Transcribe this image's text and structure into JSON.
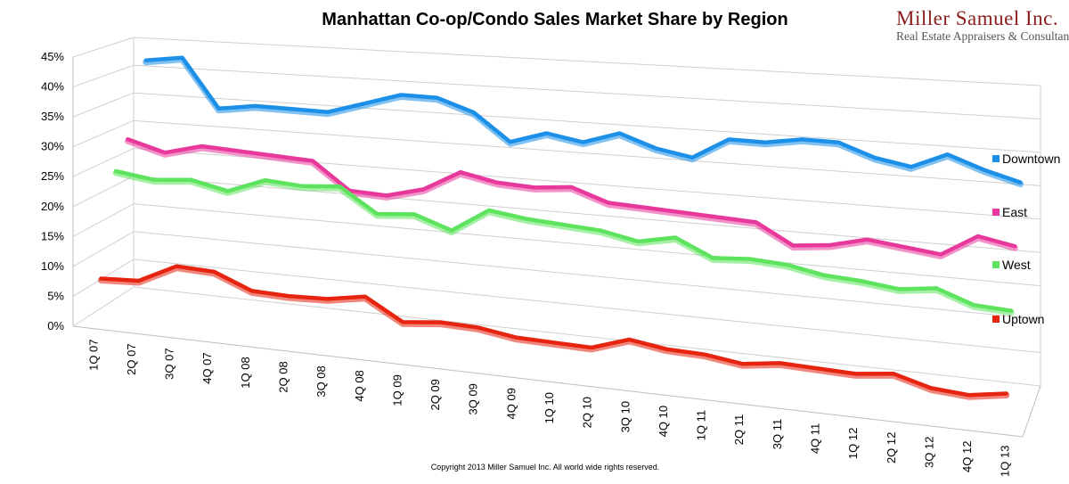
{
  "chart_data": {
    "type": "line",
    "title": "Manhattan Co-op/Condo Sales Market Share  by Region",
    "categories": [
      "1Q 07",
      "2Q 07",
      "3Q 07",
      "4Q 07",
      "1Q 08",
      "2Q 08",
      "3Q 08",
      "4Q 08",
      "1Q 09",
      "2Q 09",
      "3Q 09",
      "4Q 09",
      "1Q 10",
      "2Q 10",
      "3Q 10",
      "4Q 10",
      "1Q 11",
      "2Q 11",
      "3Q 11",
      "4Q 11",
      "1Q 12",
      "2Q 12",
      "3Q 12",
      "4Q 12",
      "1Q 13"
    ],
    "y_tick_labels": [
      "0%",
      "5%",
      "10%",
      "15%",
      "20%",
      "25%",
      "30%",
      "35%",
      "40%",
      "45%"
    ],
    "ylim": [
      0,
      45
    ],
    "grid": true,
    "view": "3d",
    "legend_position": "right",
    "series": [
      {
        "name": "Downtown",
        "color": "#1c8fe8",
        "values": [
          41.5,
          42.5,
          34,
          35,
          35,
          35,
          37,
          39,
          39,
          37,
          32.5,
          34.5,
          33.5,
          35.5,
          33.5,
          32.5,
          36,
          36,
          37,
          37,
          35,
          34,
          36.5,
          34.5,
          33
        ]
      },
      {
        "name": "East",
        "color": "#e8389c",
        "values": [
          29,
          27.5,
          29.5,
          29.5,
          29.5,
          29.5,
          25,
          25,
          27,
          31,
          30,
          30,
          31,
          29,
          29,
          29,
          29,
          29,
          25.5,
          26.5,
          28.5,
          28,
          27.5,
          32,
          31
        ]
      },
      {
        "name": "West",
        "color": "#5de35d",
        "values": [
          24.5,
          24,
          25,
          24,
          27,
          27,
          28,
          24,
          25,
          23,
          28,
          27.5,
          27.5,
          27.5,
          26.5,
          28.5,
          25.5,
          26.5,
          26.5,
          25.5,
          25.5,
          25,
          26.5,
          24,
          24
        ]
      },
      {
        "name": "Uptown",
        "color": "#e62410",
        "values": [
          7.5,
          8,
          11.5,
          11.5,
          9,
          9,
          9.5,
          11,
          7,
          8,
          8,
          7,
          7,
          7,
          10,
          9,
          9,
          8,
          9.5,
          9.5,
          9.5,
          11,
          8.5,
          8,
          10
        ]
      }
    ]
  },
  "logo": {
    "name": "Miller Samuel Inc.",
    "tagline": "Real Estate Appraisers & Consultants"
  },
  "copyright": "Copyright 2013 Miller Samuel Inc.  All world wide rights reserved."
}
